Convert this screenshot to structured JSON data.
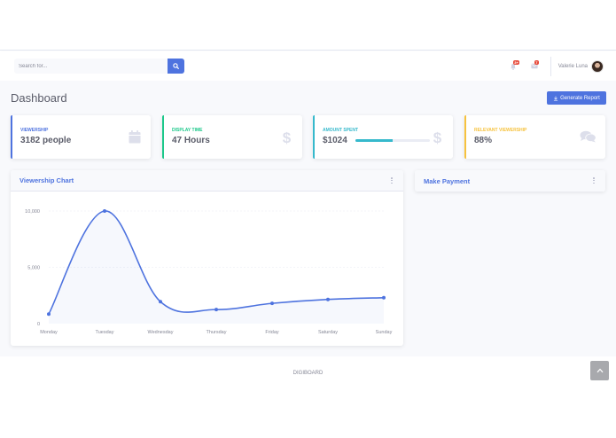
{
  "search": {
    "placeholder": "Search for..."
  },
  "navbar": {
    "alerts_badge": "3+",
    "messages_badge": "7",
    "user_name": "Valerie Luna"
  },
  "page": {
    "title": "Dashboard",
    "generate_report_label": "Generate Report"
  },
  "cards": [
    {
      "label": "VIEWERSHIP",
      "value": "3182 people",
      "color": "#4e73df",
      "icon": "calendar-icon"
    },
    {
      "label": "DISPLAY TIME",
      "value": "47 Hours",
      "color": "#1cc88a",
      "icon": "dollar-icon"
    },
    {
      "label": "AMOUNT SPENT",
      "value": "$1024",
      "color": "#36b9cc",
      "icon": "dollar-icon",
      "progress": 0.5
    },
    {
      "label": "RELEVANT VIEWERSHIP",
      "value": "88%",
      "color": "#f6c23e",
      "icon": "comments-icon"
    }
  ],
  "viewership_panel": {
    "title": "Viewership Chart"
  },
  "payment_panel": {
    "title": "Make Payment"
  },
  "chart_data": {
    "type": "line",
    "categories": [
      "Monday",
      "Tuesday",
      "Wednesday",
      "Thursday",
      "Friday",
      "Saturday",
      "Sunday"
    ],
    "series": [
      {
        "values": [
          850,
          10000,
          1950,
          1250,
          1800,
          2150,
          2300
        ]
      }
    ],
    "yticks": [
      "0",
      "5,000",
      "10,000"
    ],
    "ylim": [
      0,
      10000
    ],
    "grid": true,
    "color": "#4e73df"
  },
  "footer": {
    "text": "DIGIBOARD"
  }
}
